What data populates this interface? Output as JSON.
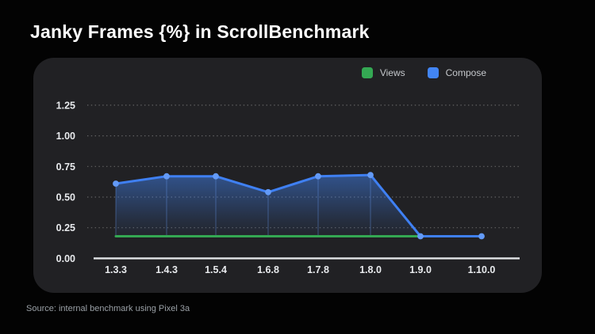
{
  "page": {
    "title": "Janky Frames {%} in ScrollBenchmark",
    "source_note": "Source: internal benchmark using Pixel 3a"
  },
  "legend": [
    {
      "label": "Views",
      "color": "#34a853"
    },
    {
      "label": "Compose",
      "color": "#4285f4"
    }
  ],
  "colors": {
    "background": "#030303",
    "panel": "#212124",
    "views_green": "#34a853",
    "compose_blue": "#4285f4",
    "compose_dot": "#639af7",
    "grid_dotted": "#6e6e6e",
    "axis_baseline": "#e3e5e8",
    "tick_text": "#e8eaed"
  },
  "chart_data": {
    "type": "line",
    "title": "Janky Frames {%} in ScrollBenchmark",
    "xlabel": "",
    "ylabel": "",
    "categories": [
      "1.3.3",
      "1.4.3",
      "1.5.4",
      "1.6.8",
      "1.7.8",
      "1.8.0",
      "1.9.0",
      "1.10.0"
    ],
    "series": [
      {
        "name": "Views",
        "color": "#34a853",
        "values": [
          0.18,
          0.18,
          0.18,
          0.18,
          0.18,
          0.18,
          0.18,
          0.18
        ],
        "markers": false,
        "area": false
      },
      {
        "name": "Compose",
        "color": "#4285f4",
        "values": [
          0.61,
          0.67,
          0.67,
          0.54,
          0.67,
          0.68,
          0.18,
          0.18
        ],
        "markers": true,
        "area": true
      }
    ],
    "ylim": [
      0,
      1.25
    ],
    "yticks": [
      0.0,
      0.25,
      0.5,
      0.75,
      1.0,
      1.25
    ],
    "ytick_format": "2dp",
    "grid": "horizontal-dotted",
    "x_baseline": "solid",
    "legend_position": "top-right"
  }
}
